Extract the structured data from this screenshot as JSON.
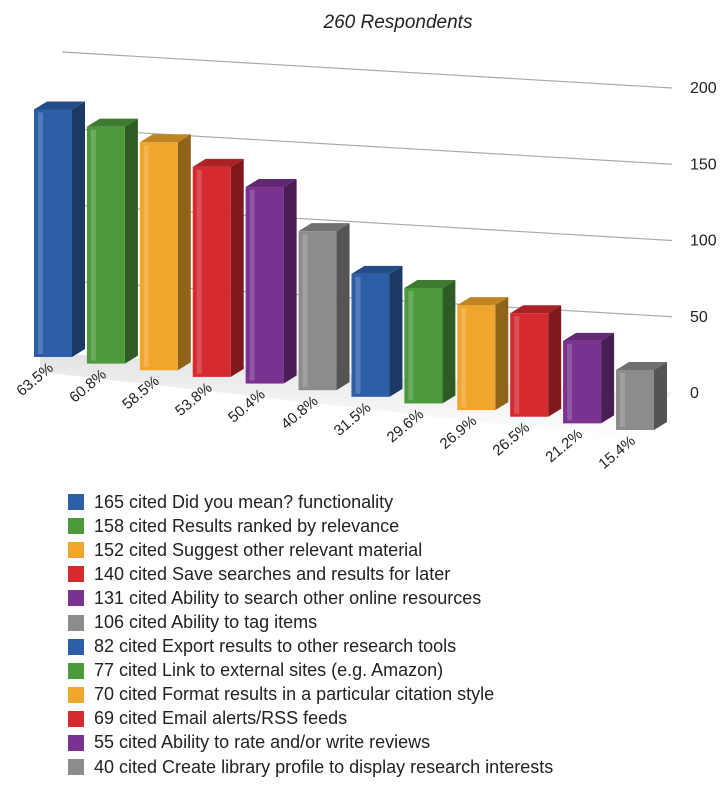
{
  "chart_data": {
    "type": "bar",
    "title": "260 Respondents",
    "xlabel": "",
    "ylabel": "",
    "ylim": [
      0,
      200
    ],
    "yticks": [
      0,
      50,
      100,
      150,
      200
    ],
    "grid": true,
    "legend_position": "bottom",
    "categories": [
      "Did you mean? functionality",
      "Results ranked by relevance",
      "Suggest other relevant material",
      "Save searches and results for later",
      "Ability to search other online resources",
      "Ability to tag items",
      "Export results to other research tools",
      "Link to external sites (e.g. Amazon)",
      "Format results in a particular citation style",
      "Email alerts/RSS feeds",
      "Ability to rate and/or write reviews",
      "Create library profile to display research interests"
    ],
    "values": [
      165,
      158,
      152,
      140,
      131,
      106,
      82,
      77,
      70,
      69,
      55,
      40
    ],
    "percent_labels": [
      "63.5%",
      "60.8%",
      "58.5%",
      "53.8%",
      "50.4%",
      "40.8%",
      "31.5%",
      "29.6%",
      "26.9%",
      "26.5%",
      "21.2%",
      "15.4%"
    ],
    "colors": [
      "#2d5fa8",
      "#4d9a3c",
      "#f0a52c",
      "#d42a30",
      "#7a3290",
      "#8c8c8c",
      "#2d5fa8",
      "#4d9a3c",
      "#f0a52c",
      "#d42a30",
      "#7a3290",
      "#8c8c8c"
    ]
  },
  "legend": [
    "165 cited Did you mean? functionality",
    "158 cited Results ranked by relevance",
    " 152 cited Suggest other relevant material",
    "140 cited Save searches and results for later",
    "131 cited Ability to search other online resources",
    "106 cited Ability to tag items",
    "82 cited Export results to other research tools",
    "77 cited Link to external sites (e.g. Amazon)",
    "70 cited Format results in a particular citation style",
    "69 cited Email alerts/RSS feeds",
    "55 cited Ability to rate and/or write reviews",
    "40 cited Create library profile to display research interests"
  ]
}
